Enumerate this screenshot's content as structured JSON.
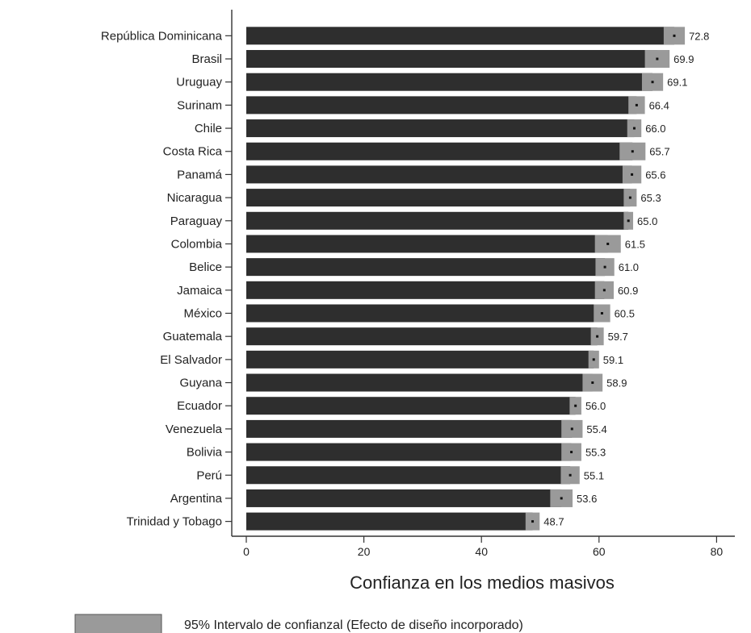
{
  "chart_data": {
    "type": "bar",
    "orientation": "horizontal",
    "categories": [
      "República Dominicana",
      "Brasil",
      "Uruguay",
      "Surinam",
      "Chile",
      "Costa Rica",
      "Panamá",
      "Nicaragua",
      "Paraguay",
      "Colombia",
      "Belice",
      "Jamaica",
      "México",
      "Guatemala",
      "El Salvador",
      "Guyana",
      "Ecuador",
      "Venezuela",
      "Bolivia",
      "Perú",
      "Argentina",
      "Trinidad y Tobago"
    ],
    "values": [
      72.8,
      69.9,
      69.1,
      66.4,
      66.0,
      65.7,
      65.6,
      65.3,
      65.0,
      61.5,
      61.0,
      60.9,
      60.5,
      59.7,
      59.1,
      58.9,
      56.0,
      55.4,
      55.3,
      55.1,
      53.6,
      48.7
    ],
    "value_labels": [
      "72.8",
      "69.9",
      "69.1",
      "66.4",
      "66.0",
      "65.7",
      "65.6",
      "65.3",
      "65.0",
      "61.5",
      "61.0",
      "60.9",
      "60.5",
      "59.7",
      "59.1",
      "58.9",
      "56.0",
      "55.4",
      "55.3",
      "55.1",
      "53.6",
      "48.7"
    ],
    "ci_low": [
      71.0,
      67.8,
      67.3,
      65.0,
      64.8,
      63.5,
      64.0,
      64.2,
      64.2,
      59.3,
      59.4,
      59.3,
      59.1,
      58.6,
      58.2,
      57.2,
      55.0,
      53.6,
      53.6,
      53.5,
      51.7,
      47.5
    ],
    "ci_high": [
      74.6,
      72.0,
      70.9,
      67.8,
      67.2,
      67.9,
      67.2,
      66.4,
      65.8,
      63.7,
      62.6,
      62.5,
      61.9,
      60.8,
      60.0,
      60.6,
      57.0,
      57.2,
      57.0,
      56.7,
      55.5,
      49.9
    ],
    "xlabel": "Confianza en los medios masivos",
    "xlim": [
      0,
      80
    ],
    "xticks": [
      0,
      20,
      40,
      60,
      80
    ],
    "xtick_labels": [
      "0",
      "20",
      "40",
      "60",
      "80"
    ],
    "grid": false,
    "legend": {
      "position": "bottom",
      "entries": [
        {
          "label": "95% Intervalo de confianzal (Efecto de diseño incorporado)"
        }
      ]
    },
    "colors": {
      "bar": "#2e2e2e",
      "ci": "#9a9a9a",
      "axis": "#333333"
    }
  }
}
